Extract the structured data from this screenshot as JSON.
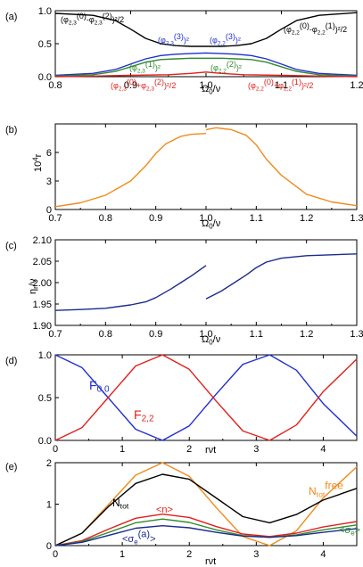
{
  "chart_data": [
    {
      "panel_label": "(a)",
      "type": "line",
      "xlabel": "Ω0/ν",
      "xlim": [
        0.8,
        1.2
      ],
      "ylim": [
        0.0,
        1.0
      ],
      "xticks": [
        "0.8",
        "0.9",
        "1.0",
        "1.1",
        "1.2"
      ],
      "yticks": [
        "0.0",
        "0.5",
        "1.0"
      ],
      "annotations": [
        {
          "text": "(φ2,3(0)-φ2,3(2))²/2",
          "color": "#000000"
        },
        {
          "text": "(φ2,2(0)-φ2,2(1))²/2",
          "color": "#000000"
        },
        {
          "text": "(φ2,3(3))²",
          "color": "#1f2fd0"
        },
        {
          "text": "(φ2,2(3))²",
          "color": "#1f2fd0"
        },
        {
          "text": "(φ2,3(1))²",
          "color": "#2e8b2e"
        },
        {
          "text": "(φ2,2(2))²",
          "color": "#2e8b2e"
        },
        {
          "text": "(φ2,3(0)+φ2,3(2))²/2",
          "color": "#e0201b"
        },
        {
          "text": "(φ2,2(0)+φ2,2(1))²/2",
          "color": "#e0201b"
        }
      ],
      "series": [
        {
          "color": "#000000",
          "x": [
            0.8,
            0.85,
            0.88,
            0.9,
            0.92,
            0.94,
            0.96,
            0.98,
            1.0,
            1.02,
            1.04,
            1.06,
            1.08,
            1.1,
            1.12,
            1.15,
            1.2
          ],
          "y": [
            0.96,
            0.93,
            0.85,
            0.72,
            0.58,
            0.5,
            0.47,
            0.46,
            0.46,
            0.46,
            0.47,
            0.5,
            0.58,
            0.72,
            0.85,
            0.93,
            0.97
          ]
        },
        {
          "color": "#1f2fd0",
          "x": [
            0.8,
            0.85,
            0.88,
            0.9,
            0.92,
            0.94,
            0.96,
            0.98,
            1.0,
            1.02,
            1.04,
            1.06,
            1.08,
            1.1,
            1.12,
            1.15,
            1.2
          ],
          "y": [
            0.02,
            0.05,
            0.11,
            0.19,
            0.27,
            0.32,
            0.34,
            0.35,
            0.36,
            0.35,
            0.34,
            0.32,
            0.27,
            0.19,
            0.11,
            0.05,
            0.02
          ]
        },
        {
          "color": "#2e8b2e",
          "x": [
            0.8,
            0.85,
            0.88,
            0.9,
            0.92,
            0.94,
            0.96,
            0.98,
            1.0,
            1.02,
            1.04,
            1.06,
            1.08,
            1.1,
            1.12,
            1.15,
            1.2
          ],
          "y": [
            0.01,
            0.03,
            0.08,
            0.15,
            0.22,
            0.26,
            0.27,
            0.28,
            0.28,
            0.28,
            0.27,
            0.26,
            0.22,
            0.15,
            0.08,
            0.03,
            0.01
          ]
        },
        {
          "color": "#e0201b",
          "x": [
            0.8,
            0.85,
            0.9,
            0.95,
            0.98,
            1.0,
            1.02,
            1.05,
            1.1,
            1.15,
            1.2
          ],
          "y": [
            0.0,
            0.01,
            0.02,
            0.03,
            0.05,
            0.07,
            0.05,
            0.03,
            0.02,
            0.01,
            0.0
          ]
        }
      ]
    },
    {
      "panel_label": "(b)",
      "type": "line",
      "xlabel": "Ω0/ν",
      "ylabel": "10⁴r",
      "xlim": [
        0.7,
        1.3
      ],
      "ylim": [
        0,
        9
      ],
      "xticks": [
        "0.7",
        "0.8",
        "0.9",
        "1.0",
        "1.1",
        "1.2",
        "1.3"
      ],
      "yticks": [
        "0",
        "3",
        "6"
      ],
      "series": [
        {
          "color": "#f08a1a",
          "x": [
            0.7,
            0.75,
            0.8,
            0.85,
            0.88,
            0.9,
            0.92,
            0.95,
            0.97,
            1.0
          ],
          "y": [
            0.3,
            0.7,
            1.5,
            3.0,
            4.6,
            5.9,
            6.9,
            7.7,
            7.9,
            8.0
          ]
        },
        {
          "color": "#f08a1a",
          "x": [
            1.0,
            1.02,
            1.05,
            1.08,
            1.1,
            1.12,
            1.15,
            1.2,
            1.25,
            1.3
          ],
          "y": [
            8.4,
            8.6,
            8.4,
            7.8,
            6.8,
            5.3,
            3.6,
            1.6,
            0.8,
            0.4
          ]
        }
      ]
    },
    {
      "panel_label": "(c)",
      "type": "line",
      "xlabel": "Ω0/ν",
      "ylabel": "ηr/ν",
      "xlim": [
        0.7,
        1.3
      ],
      "ylim": [
        1.9,
        2.1
      ],
      "xticks": [
        "0.7",
        "0.8",
        "0.9",
        "1.0",
        "1.1",
        "1.2",
        "1.3"
      ],
      "yticks": [
        "1.90",
        "1.95",
        "2.00",
        "2.05",
        "2.10"
      ],
      "series": [
        {
          "color": "#1b2a8c",
          "x": [
            0.7,
            0.75,
            0.8,
            0.85,
            0.88,
            0.9,
            0.93,
            0.95,
            0.97,
            1.0
          ],
          "y": [
            1.935,
            1.937,
            1.94,
            1.948,
            1.955,
            1.965,
            1.985,
            2.0,
            2.015,
            2.04
          ]
        },
        {
          "color": "#1b2a8c",
          "x": [
            1.0,
            1.03,
            1.05,
            1.08,
            1.1,
            1.12,
            1.15,
            1.2,
            1.25,
            1.3
          ],
          "y": [
            1.962,
            1.98,
            1.995,
            2.018,
            2.035,
            2.048,
            2.057,
            2.063,
            2.065,
            2.067
          ]
        }
      ]
    },
    {
      "panel_label": "(d)",
      "type": "line",
      "xlabel": "rνt",
      "xlim": [
        0,
        4.5
      ],
      "ylim": [
        0,
        1
      ],
      "xticks": [
        "0",
        "1",
        "2",
        "3",
        "4"
      ],
      "yticks": [
        "0.0",
        "0.5",
        "1.0"
      ],
      "series": [
        {
          "name": "F0,0",
          "color": "#1f2fd0",
          "x": [
            0,
            0.4,
            0.8,
            1.2,
            1.6,
            2.0,
            2.4,
            2.8,
            3.2,
            3.6,
            4.0,
            4.5
          ],
          "y": [
            1.0,
            0.85,
            0.49,
            0.13,
            0.0,
            0.17,
            0.54,
            0.89,
            1.0,
            0.82,
            0.43,
            0.05
          ]
        },
        {
          "name": "F2,2",
          "color": "#e0201b",
          "x": [
            0,
            0.4,
            0.8,
            1.2,
            1.6,
            2.0,
            2.4,
            2.8,
            3.2,
            3.6,
            4.0,
            4.5
          ],
          "y": [
            0.0,
            0.15,
            0.51,
            0.87,
            1.0,
            0.83,
            0.46,
            0.11,
            0.0,
            0.18,
            0.57,
            0.95
          ]
        }
      ]
    },
    {
      "panel_label": "(e)",
      "type": "line",
      "xlabel": "rνt",
      "xlim": [
        0,
        4.5
      ],
      "ylim": [
        0,
        2
      ],
      "xticks": [
        "0",
        "1",
        "2",
        "3",
        "4"
      ],
      "yticks": [
        "0",
        "1",
        "2"
      ],
      "labels": [
        "Ntot",
        "Ntotfree",
        "<n>",
        "<σe(a)>",
        "<σe>"
      ],
      "series": [
        {
          "name": "Ntot free",
          "color": "#f08a1a",
          "x": [
            0,
            0.4,
            0.8,
            1.2,
            1.6,
            2.0,
            2.4,
            2.8,
            3.2,
            3.6,
            4.0,
            4.5
          ],
          "y": [
            0.0,
            0.3,
            1.0,
            1.7,
            2.0,
            1.67,
            0.92,
            0.22,
            0.0,
            0.36,
            1.15,
            1.9
          ]
        },
        {
          "name": "Ntot",
          "color": "#000000",
          "x": [
            0,
            0.4,
            0.8,
            1.2,
            1.6,
            2.0,
            2.4,
            2.8,
            3.2,
            3.6,
            4.0,
            4.5
          ],
          "y": [
            0.0,
            0.3,
            0.95,
            1.5,
            1.72,
            1.6,
            1.15,
            0.7,
            0.55,
            0.75,
            1.1,
            1.38
          ]
        },
        {
          "name": "<n>",
          "color": "#e0201b",
          "x": [
            0,
            0.4,
            0.8,
            1.2,
            1.6,
            2.0,
            2.4,
            2.8,
            3.2,
            3.6,
            4.0,
            4.5
          ],
          "y": [
            0.0,
            0.12,
            0.4,
            0.66,
            0.76,
            0.68,
            0.46,
            0.28,
            0.22,
            0.3,
            0.45,
            0.58
          ]
        },
        {
          "name": "<σe>",
          "color": "#2e8b2e",
          "x": [
            0,
            0.4,
            0.8,
            1.2,
            1.6,
            2.0,
            2.4,
            2.8,
            3.2,
            3.6,
            4.0,
            4.5
          ],
          "y": [
            0.0,
            0.1,
            0.32,
            0.55,
            0.64,
            0.56,
            0.38,
            0.24,
            0.2,
            0.26,
            0.38,
            0.5
          ]
        },
        {
          "name": "<σe(a)>",
          "color": "#1b2a8c",
          "x": [
            0,
            0.4,
            0.8,
            1.2,
            1.6,
            2.0,
            2.4,
            2.8,
            3.2,
            3.6,
            4.0,
            4.5
          ],
          "y": [
            0.0,
            0.08,
            0.25,
            0.42,
            0.48,
            0.43,
            0.32,
            0.23,
            0.2,
            0.24,
            0.32,
            0.41
          ]
        }
      ]
    }
  ]
}
